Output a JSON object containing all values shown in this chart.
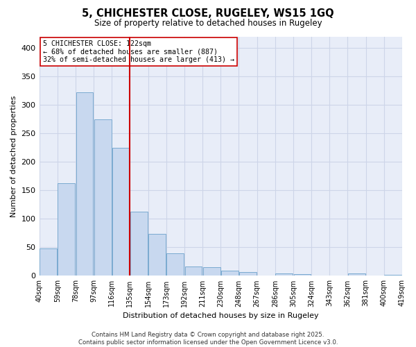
{
  "title": "5, CHICHESTER CLOSE, RUGELEY, WS15 1GQ",
  "subtitle": "Size of property relative to detached houses in Rugeley",
  "xlabel": "Distribution of detached houses by size in Rugeley",
  "ylabel": "Number of detached properties",
  "footer_line1": "Contains HM Land Registry data © Crown copyright and database right 2025.",
  "footer_line2": "Contains public sector information licensed under the Open Government Licence v3.0.",
  "bin_labels": [
    "40sqm",
    "59sqm",
    "78sqm",
    "97sqm",
    "116sqm",
    "135sqm",
    "154sqm",
    "173sqm",
    "192sqm",
    "211sqm",
    "230sqm",
    "248sqm",
    "267sqm",
    "286sqm",
    "305sqm",
    "324sqm",
    "343sqm",
    "362sqm",
    "381sqm",
    "400sqm",
    "419sqm"
  ],
  "values": [
    48,
    162,
    322,
    275,
    225,
    113,
    73,
    40,
    16,
    15,
    9,
    7,
    0,
    4,
    3,
    0,
    0,
    4,
    0,
    2
  ],
  "bar_color": "#c8d8ef",
  "bar_edge_color": "#7aaad0",
  "grid_color": "#cdd5e8",
  "background_color": "#e8edf8",
  "vline_x_index": 4,
  "vline_color": "#cc0000",
  "annotation_line1": "5 CHICHESTER CLOSE: 122sqm",
  "annotation_line2": "← 68% of detached houses are smaller (887)",
  "annotation_line3": "32% of semi-detached houses are larger (413) →",
  "annotation_box_edgecolor": "#cc0000",
  "ylim": [
    0,
    420
  ],
  "yticks": [
    0,
    50,
    100,
    150,
    200,
    250,
    300,
    350,
    400
  ]
}
